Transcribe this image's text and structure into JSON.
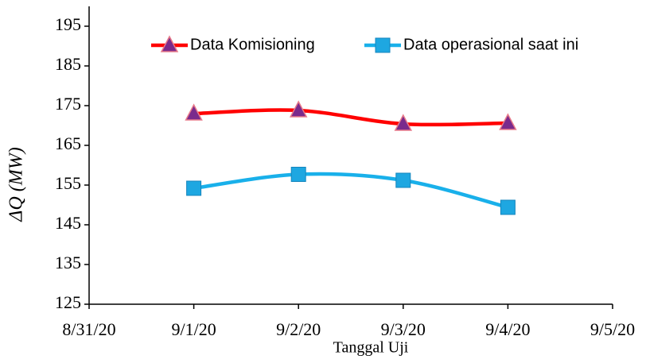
{
  "chart_data": {
    "type": "line",
    "x_label": "Tanggal Uji",
    "y_label": "ΔQ (MW)",
    "x": [
      "9/1/20",
      "9/2/20",
      "9/3/20",
      "9/4/20"
    ],
    "xticks": [
      "8/31/20",
      "9/1/20",
      "9/2/20",
      "9/3/20",
      "9/4/20",
      "9/5/20"
    ],
    "series": [
      {
        "name": "Data Komisioning",
        "color": "#ff0000",
        "marker": "triangle",
        "marker_color": "#7a2a8c",
        "values": [
          173.0,
          173.8,
          170.4,
          170.6
        ]
      },
      {
        "name": "Data operasional saat ini",
        "color": "#19b0ea",
        "marker": "square",
        "marker_color": "#1ea7e1",
        "values": [
          154.2,
          157.7,
          156.2,
          149.4
        ]
      }
    ],
    "ylim": [
      125,
      200
    ],
    "yticks": [
      125,
      135,
      145,
      155,
      165,
      175,
      185,
      195
    ],
    "smooth": true,
    "legend": "top"
  }
}
